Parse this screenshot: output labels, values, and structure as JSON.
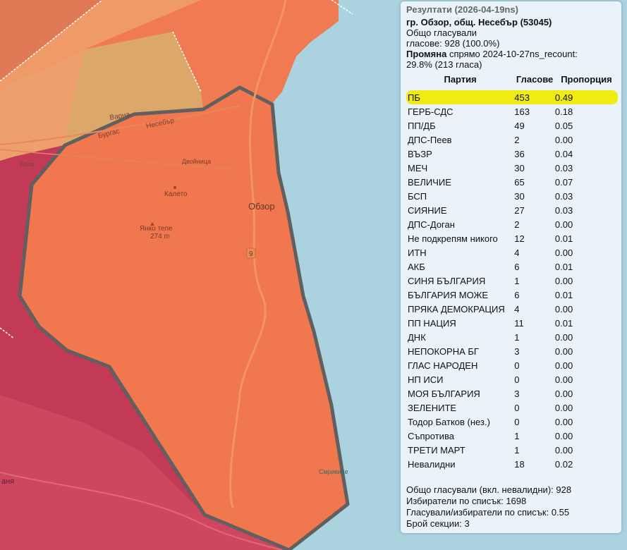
{
  "map": {
    "labels": {
      "town": "Обзор",
      "village": "Калето",
      "peak_name": "Янко тепе",
      "peak_elev": "274 m",
      "road_number": "9",
      "road_burgas": "Бургас",
      "road_varna": "Варна",
      "road_nesebar": "Несебър",
      "river_dvoynitsa": "Двойница",
      "river_bela": "Бела",
      "beach": "Смрикине",
      "partial_left": "аня"
    },
    "colors": {
      "sea": "#aad3df",
      "region_selected": "#f0774e",
      "region_north": "#f07a52",
      "region_northwest": "#e8955e",
      "region_gold": "#dba86a",
      "region_crimson": "#c23a55",
      "region_topleft": "#e07a56",
      "border": "#606060"
    }
  },
  "results": {
    "title": "Резултати (2026-04-19ns)",
    "location": "гр. Обзор, общ. Несебър (53045)",
    "turnout_label": "Общо гласували",
    "turnout_value": "гласове: 928 (100.0%)",
    "change_label": "Промяна",
    "change_text": " спрямо 2024-10-27ns_recount:",
    "change_value": "29.8% (213 гласа)",
    "headers": {
      "party": "Партия",
      "votes": "Гласове",
      "share": "Пропорция"
    },
    "rows": [
      {
        "party": "ПБ",
        "votes": "453",
        "share": "0.49"
      },
      {
        "party": "ГЕРБ-СДС",
        "votes": "163",
        "share": "0.18"
      },
      {
        "party": "ПП/ДБ",
        "votes": "49",
        "share": "0.05"
      },
      {
        "party": "ДПС-Пеев",
        "votes": "2",
        "share": "0.00"
      },
      {
        "party": "ВЪЗР",
        "votes": "36",
        "share": "0.04"
      },
      {
        "party": "МЕЧ",
        "votes": "30",
        "share": "0.03"
      },
      {
        "party": "ВЕЛИЧИЕ",
        "votes": "65",
        "share": "0.07"
      },
      {
        "party": "БСП",
        "votes": "30",
        "share": "0.03"
      },
      {
        "party": "СИЯНИЕ",
        "votes": "27",
        "share": "0.03"
      },
      {
        "party": "ДПС-Доган",
        "votes": "2",
        "share": "0.00"
      },
      {
        "party": "Не подкрепям никого",
        "votes": "12",
        "share": "0.01"
      },
      {
        "party": "ИТН",
        "votes": "4",
        "share": "0.00"
      },
      {
        "party": "АКБ",
        "votes": "6",
        "share": "0.01"
      },
      {
        "party": "СИНЯ БЪЛГАРИЯ",
        "votes": "1",
        "share": "0.00"
      },
      {
        "party": "БЪЛГАРИЯ МОЖЕ",
        "votes": "6",
        "share": "0.01"
      },
      {
        "party": "ПРЯКА ДЕМОКРАЦИЯ",
        "votes": "4",
        "share": "0.00"
      },
      {
        "party": "ПП НАЦИЯ",
        "votes": "11",
        "share": "0.01"
      },
      {
        "party": "ДНК",
        "votes": "1",
        "share": "0.00"
      },
      {
        "party": "НЕПОКОРНА БГ",
        "votes": "3",
        "share": "0.00"
      },
      {
        "party": "ГЛАС НАРОДЕН",
        "votes": "0",
        "share": "0.00"
      },
      {
        "party": "НП ИСИ",
        "votes": "0",
        "share": "0.00"
      },
      {
        "party": "МОЯ БЪЛГАРИЯ",
        "votes": "3",
        "share": "0.00"
      },
      {
        "party": "ЗЕЛЕНИТЕ",
        "votes": "0",
        "share": "0.00"
      },
      {
        "party": "Тодор Батков (нез.)",
        "votes": "0",
        "share": "0.00"
      },
      {
        "party": "Съпротива",
        "votes": "1",
        "share": "0.00"
      },
      {
        "party": "ТРЕТИ МАРТ",
        "votes": "1",
        "share": "0.00"
      },
      {
        "party": "Невалидни",
        "votes": "18",
        "share": "0.02"
      }
    ],
    "highlight_index": 0,
    "highlight_color": "#f0eb12",
    "footer": {
      "total_with_invalid": "Общо гласували (вкл. невалидни): 928",
      "voters_on_list": "Избиратели по списък: 1698",
      "turnout_ratio": "Гласували/избиратели по списък: 0.55",
      "sections": "Брой секции: 3"
    }
  }
}
